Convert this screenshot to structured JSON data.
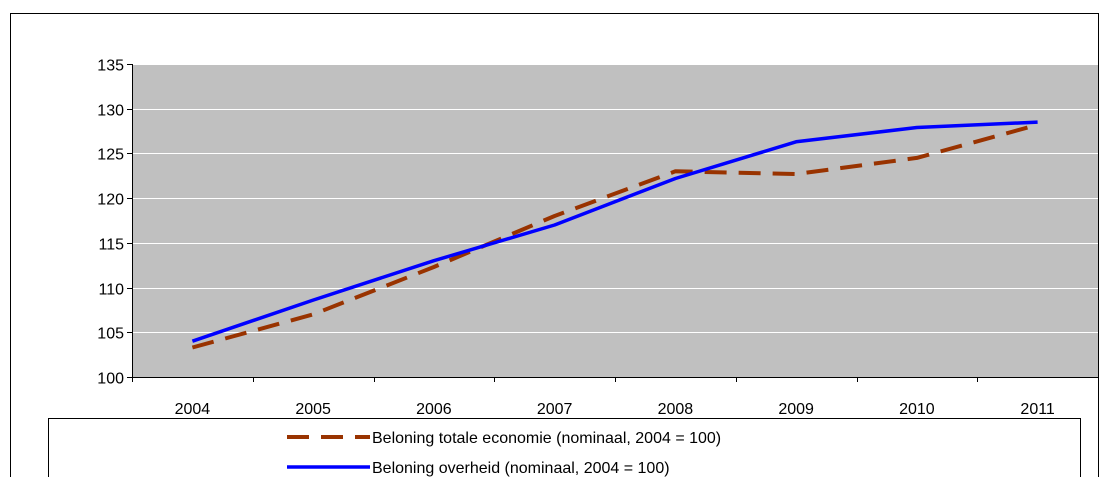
{
  "chart_data": {
    "type": "line",
    "categories": [
      "2004",
      "2005",
      "2006",
      "2007",
      "2008",
      "2009",
      "2010",
      "2011"
    ],
    "ylim": [
      100,
      135
    ],
    "yticks": [
      100,
      105,
      110,
      115,
      120,
      125,
      130,
      135
    ],
    "grid": true,
    "legend_position": "bottom",
    "plot_background": "#c0c0c0",
    "series": [
      {
        "name": "Beloning totale economie (nominaal, 2004 = 100)",
        "values": [
          103.3,
          107.0,
          112.3,
          118.0,
          123.0,
          122.7,
          124.5,
          128.2
        ],
        "color": "#993300",
        "style": "dashed"
      },
      {
        "name": "Beloning overheid (nominaal, 2004 = 100)",
        "values": [
          104.0,
          108.6,
          113.0,
          117.0,
          122.2,
          126.3,
          127.9,
          128.5
        ],
        "color": "#0000ff",
        "style": "solid"
      }
    ]
  }
}
